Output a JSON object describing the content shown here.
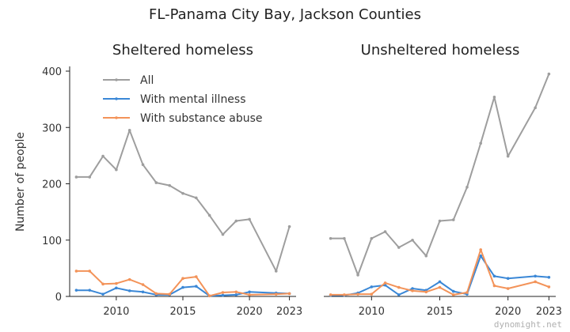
{
  "suptitle": "FL-Panama City Bay, Jackson Counties",
  "watermark": "dynomight.net",
  "colors": {
    "all": "#9e9e9e",
    "mental": "#3a87d6",
    "substance": "#f39359",
    "axis": "#222222"
  },
  "legend": {
    "placement": "top-left of left panel",
    "items": [
      {
        "key": "all",
        "label": "All"
      },
      {
        "key": "mental",
        "label": "With mental illness"
      },
      {
        "key": "substance",
        "label": "With substance abuse"
      }
    ]
  },
  "chart_data": [
    {
      "type": "line",
      "title": "Sheltered homeless",
      "ylabel": "Number of people",
      "xlim": [
        2006.5,
        2023.5
      ],
      "ylim": [
        0,
        400
      ],
      "xticks": [
        2010,
        2015,
        2020,
        2023
      ],
      "yticks": [
        0,
        100,
        200,
        300,
        400
      ],
      "x": [
        2007,
        2008,
        2009,
        2010,
        2011,
        2012,
        2013,
        2014,
        2015,
        2016,
        2017,
        2018,
        2019,
        2020,
        2022,
        2023
      ],
      "series": [
        {
          "name": "All",
          "key": "all",
          "values": [
            212,
            212,
            249,
            225,
            295,
            234,
            202,
            197,
            183,
            175,
            144,
            110,
            134,
            137,
            45,
            124
          ]
        },
        {
          "name": "With mental illness",
          "key": "mental",
          "values": [
            11,
            11,
            4,
            15,
            10,
            8,
            3,
            3,
            16,
            18,
            1,
            2,
            3,
            8,
            6,
            5
          ]
        },
        {
          "name": "With substance abuse",
          "key": "substance",
          "values": [
            45,
            45,
            22,
            23,
            30,
            21,
            5,
            4,
            32,
            35,
            1,
            7,
            8,
            3,
            4,
            5
          ]
        }
      ]
    },
    {
      "type": "line",
      "title": "Unsheltered homeless",
      "ylabel": "",
      "xlim": [
        2006.5,
        2023.5
      ],
      "ylim": [
        0,
        400
      ],
      "xticks": [
        2010,
        2015,
        2020,
        2023
      ],
      "yticks": [],
      "x": [
        2007,
        2008,
        2009,
        2010,
        2011,
        2012,
        2013,
        2014,
        2015,
        2016,
        2017,
        2018,
        2019,
        2020,
        2022,
        2023
      ],
      "series": [
        {
          "name": "All",
          "key": "all",
          "values": [
            103,
            103,
            38,
            103,
            115,
            87,
            100,
            72,
            134,
            136,
            194,
            272,
            354,
            249,
            335,
            395
          ]
        },
        {
          "name": "With mental illness",
          "key": "mental",
          "values": [
            2,
            2,
            6,
            17,
            20,
            3,
            14,
            11,
            26,
            9,
            4,
            72,
            36,
            32,
            36,
            34
          ]
        },
        {
          "name": "With substance abuse",
          "key": "substance",
          "values": [
            3,
            3,
            4,
            4,
            24,
            16,
            10,
            8,
            16,
            3,
            7,
            83,
            19,
            14,
            26,
            17
          ]
        }
      ]
    }
  ]
}
